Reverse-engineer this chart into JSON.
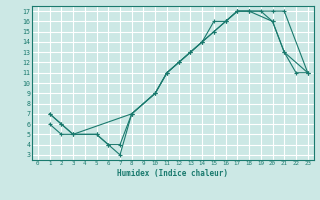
{
  "xlabel": "Humidex (Indice chaleur)",
  "bg_color": "#cce8e5",
  "grid_color": "#ffffff",
  "line_color": "#1a7a6e",
  "xlim": [
    -0.5,
    23.5
  ],
  "ylim": [
    2.5,
    17.5
  ],
  "xticks": [
    0,
    1,
    2,
    3,
    4,
    5,
    6,
    7,
    8,
    9,
    10,
    11,
    12,
    13,
    14,
    15,
    16,
    17,
    18,
    19,
    20,
    21,
    22,
    23
  ],
  "yticks": [
    3,
    4,
    5,
    6,
    7,
    8,
    9,
    10,
    11,
    12,
    13,
    14,
    15,
    16,
    17
  ],
  "line1_x": [
    1,
    2,
    3,
    5,
    6,
    7,
    8,
    10,
    11,
    12,
    13,
    14,
    15,
    16,
    17,
    18,
    20,
    21,
    23
  ],
  "line1_y": [
    7,
    6,
    5,
    5,
    4,
    3,
    7,
    9,
    11,
    12,
    13,
    14,
    16,
    16,
    17,
    17,
    16,
    13,
    11
  ],
  "line2_x": [
    1,
    2,
    3,
    5,
    6,
    7,
    8,
    10,
    11,
    12,
    13,
    14,
    15,
    16,
    17,
    18,
    20,
    21,
    23
  ],
  "line2_y": [
    7,
    6,
    5,
    5,
    4,
    4,
    7,
    9,
    11,
    12,
    13,
    14,
    15,
    16,
    17,
    17,
    17,
    17,
    11
  ],
  "line3_x": [
    1,
    2,
    3,
    8,
    10,
    11,
    12,
    13,
    14,
    15,
    16,
    17,
    18,
    19,
    20,
    21,
    22,
    23
  ],
  "line3_y": [
    6,
    5,
    5,
    7,
    9,
    11,
    12,
    13,
    14,
    15,
    16,
    17,
    17,
    17,
    16,
    13,
    11,
    11
  ]
}
